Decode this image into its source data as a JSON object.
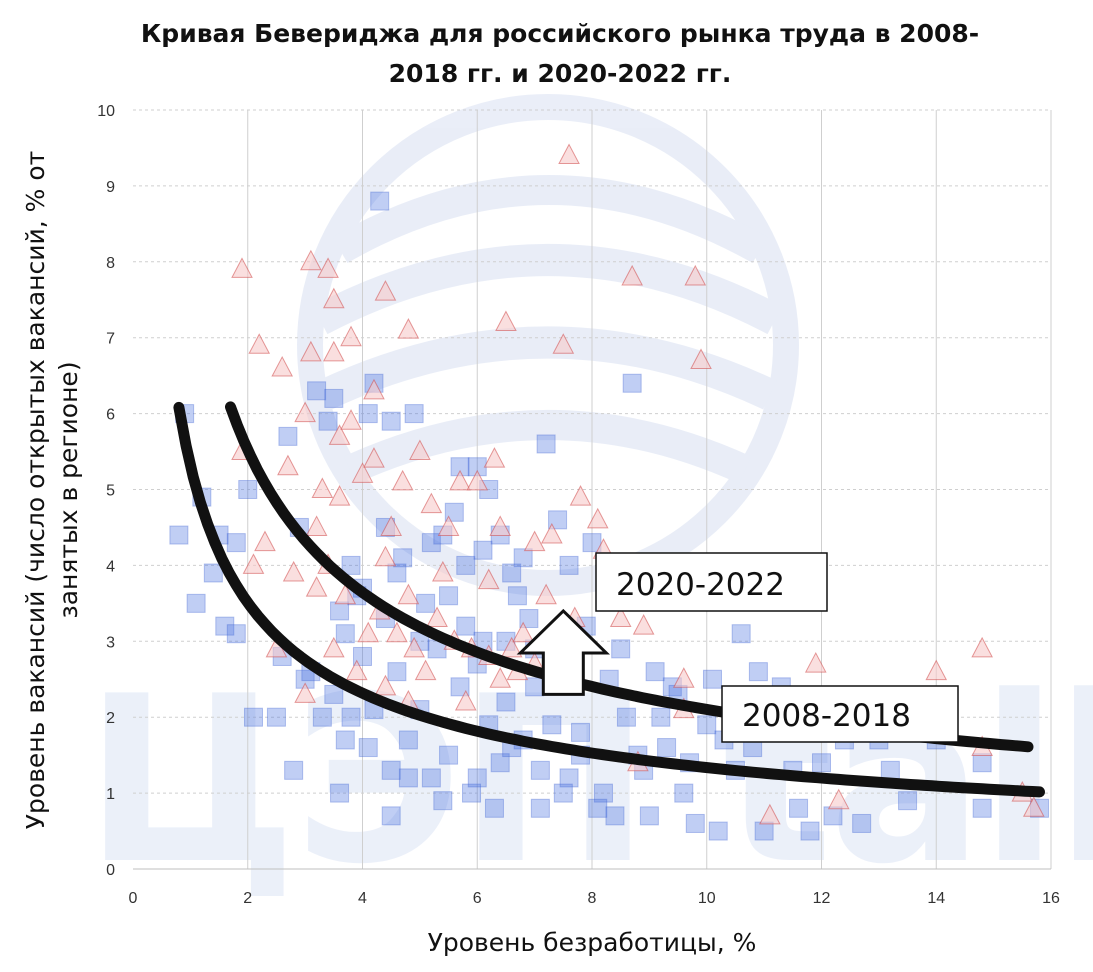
{
  "chart_data": {
    "type": "scatter",
    "title_line1": "Кривая Бевериджа для российского рынка труда в 2008-",
    "title_line2": "2018 гг. и 2020-2022 гг.",
    "xlabel": "Уровень безработицы, %",
    "ylabel_line1": "Уровень  вакансий (число открытых вакансий, % от",
    "ylabel_line2": "занятых в регионе)",
    "xlim": [
      0,
      16
    ],
    "ylim": [
      0,
      10
    ],
    "x_ticks": [
      "0",
      "2",
      "4",
      "6",
      "8",
      "10",
      "12",
      "14",
      "16"
    ],
    "y_ticks": [
      "0",
      "1",
      "2",
      "3",
      "4",
      "5",
      "6",
      "7",
      "8",
      "9",
      "10"
    ],
    "watermark": "ЦЭП talks",
    "colors": {
      "series_2008_2018_fill": "#4a72e0",
      "series_2008_2018_stroke": "#3a5fd0",
      "series_2020_2022_fill": "#f7c9c9",
      "series_2020_2022_stroke": "#d04848",
      "curve": "#111111",
      "grid": "#cfcfcf"
    },
    "curves": [
      {
        "name": "2008-2018",
        "label": "2008-2018",
        "a": 5.6,
        "b": 0.15,
        "x_range": [
          0.8,
          15.8
        ],
        "label_pos": [
          10.5,
          2.0
        ]
      },
      {
        "name": "2020-2022",
        "label": "2020-2022",
        "a": 9.0,
        "b": 0.12,
        "x_range": [
          1.7,
          15.6
        ],
        "label_pos": [
          8.3,
          4.0
        ]
      }
    ],
    "arrow": {
      "from": [
        7.5,
        2.3
      ],
      "to": [
        7.5,
        3.4
      ],
      "direction": "up"
    },
    "series": [
      {
        "name": "2008-2018",
        "marker": "square",
        "points": [
          [
            0.8,
            4.4
          ],
          [
            0.9,
            6.0
          ],
          [
            1.2,
            4.9
          ],
          [
            1.1,
            3.5
          ],
          [
            1.4,
            3.9
          ],
          [
            1.5,
            4.4
          ],
          [
            1.6,
            3.2
          ],
          [
            1.8,
            3.1
          ],
          [
            1.8,
            4.3
          ],
          [
            2.0,
            5.0
          ],
          [
            2.1,
            2.0
          ],
          [
            2.5,
            2.0
          ],
          [
            2.6,
            2.8
          ],
          [
            2.7,
            5.7
          ],
          [
            2.8,
            1.3
          ],
          [
            2.9,
            4.5
          ],
          [
            3.0,
            2.5
          ],
          [
            3.1,
            2.6
          ],
          [
            3.2,
            6.3
          ],
          [
            3.3,
            2.0
          ],
          [
            3.4,
            5.9
          ],
          [
            3.5,
            6.2
          ],
          [
            3.6,
            1.0
          ],
          [
            3.7,
            3.1
          ],
          [
            4.1,
            6.0
          ],
          [
            4.2,
            6.4
          ],
          [
            4.3,
            8.8
          ],
          [
            4.5,
            5.9
          ],
          [
            4.9,
            6.0
          ],
          [
            5.2,
            4.3
          ],
          [
            5.7,
            5.3
          ],
          [
            6.0,
            5.3
          ],
          [
            6.2,
            5.0
          ],
          [
            6.4,
            4.4
          ],
          [
            6.6,
            3.9
          ],
          [
            6.9,
            3.3
          ],
          [
            7.0,
            2.9
          ],
          [
            7.2,
            5.6
          ],
          [
            7.4,
            4.6
          ],
          [
            7.6,
            4.0
          ],
          [
            7.8,
            1.5
          ],
          [
            8.0,
            4.3
          ],
          [
            8.2,
            1.0
          ],
          [
            8.4,
            0.7
          ],
          [
            8.6,
            2.0
          ],
          [
            8.7,
            6.4
          ],
          [
            8.9,
            1.3
          ],
          [
            9.0,
            0.7
          ],
          [
            9.2,
            2.0
          ],
          [
            9.4,
            2.4
          ],
          [
            9.6,
            1.0
          ],
          [
            9.8,
            0.6
          ],
          [
            10.0,
            1.9
          ],
          [
            10.2,
            0.5
          ],
          [
            10.5,
            1.3
          ],
          [
            10.6,
            3.1
          ],
          [
            10.8,
            1.6
          ],
          [
            11.0,
            0.5
          ],
          [
            11.3,
            2.4
          ],
          [
            11.5,
            1.3
          ],
          [
            11.6,
            0.8
          ],
          [
            11.8,
            0.5
          ],
          [
            12.2,
            0.7
          ],
          [
            12.4,
            1.7
          ],
          [
            12.7,
            0.6
          ],
          [
            13.0,
            1.7
          ],
          [
            13.2,
            1.3
          ],
          [
            13.5,
            0.9
          ],
          [
            14.0,
            1.7
          ],
          [
            14.8,
            0.8
          ],
          [
            15.8,
            0.8
          ],
          [
            14.8,
            1.4
          ],
          [
            12.0,
            1.4
          ],
          [
            11.7,
            2.1
          ],
          [
            10.9,
            2.6
          ],
          [
            10.1,
            2.5
          ],
          [
            9.1,
            2.6
          ],
          [
            9.3,
            1.6
          ],
          [
            7.6,
            1.2
          ],
          [
            6.3,
            0.8
          ],
          [
            7.1,
            0.8
          ],
          [
            5.4,
            0.9
          ],
          [
            4.5,
            0.7
          ],
          [
            4.8,
            1.2
          ],
          [
            5.9,
            1.0
          ],
          [
            5.5,
            3.6
          ],
          [
            6.1,
            3.0
          ],
          [
            6.7,
            3.6
          ],
          [
            7.3,
            1.9
          ],
          [
            8.1,
            0.8
          ],
          [
            3.8,
            4.0
          ],
          [
            3.9,
            3.6
          ],
          [
            4.6,
            3.9
          ],
          [
            5.0,
            3.0
          ],
          [
            5.8,
            4.0
          ],
          [
            6.8,
            4.1
          ],
          [
            4.4,
            4.5
          ],
          [
            5.6,
            4.7
          ],
          [
            3.6,
            3.4
          ],
          [
            7.9,
            3.2
          ],
          [
            4.0,
            2.8
          ],
          [
            4.6,
            2.6
          ],
          [
            5.3,
            2.9
          ],
          [
            6.0,
            2.7
          ],
          [
            6.5,
            2.2
          ],
          [
            7.0,
            2.4
          ],
          [
            3.5,
            2.3
          ],
          [
            4.2,
            2.1
          ],
          [
            5.0,
            2.1
          ],
          [
            5.7,
            2.4
          ],
          [
            6.2,
            1.9
          ],
          [
            6.8,
            1.7
          ],
          [
            7.3,
            2.5
          ],
          [
            4.1,
            1.6
          ],
          [
            4.8,
            1.7
          ],
          [
            5.5,
            1.5
          ],
          [
            6.4,
            1.4
          ],
          [
            7.1,
            1.3
          ],
          [
            7.8,
            1.8
          ],
          [
            8.3,
            2.5
          ],
          [
            3.8,
            2.0
          ],
          [
            4.4,
            3.3
          ],
          [
            5.1,
            3.5
          ],
          [
            5.8,
            3.2
          ],
          [
            6.5,
            3.0
          ],
          [
            8.5,
            2.9
          ],
          [
            9.5,
            2.3
          ],
          [
            10.3,
            1.7
          ],
          [
            3.7,
            1.7
          ],
          [
            4.5,
            1.3
          ],
          [
            5.2,
            1.2
          ],
          [
            6.0,
            1.2
          ],
          [
            6.6,
            1.6
          ],
          [
            7.5,
            1.0
          ],
          [
            8.8,
            1.5
          ],
          [
            9.7,
            1.4
          ],
          [
            4.0,
            3.7
          ],
          [
            4.7,
            4.1
          ],
          [
            5.4,
            4.4
          ],
          [
            6.1,
            4.2
          ]
        ]
      },
      {
        "name": "2020-2022",
        "marker": "triangle",
        "points": [
          [
            1.9,
            7.9
          ],
          [
            2.2,
            6.9
          ],
          [
            2.6,
            6.6
          ],
          [
            3.1,
            8.0
          ],
          [
            3.4,
            7.9
          ],
          [
            3.5,
            7.5
          ],
          [
            3.5,
            6.8
          ],
          [
            3.8,
            7.0
          ],
          [
            4.2,
            6.3
          ],
          [
            4.4,
            7.6
          ],
          [
            4.8,
            7.1
          ],
          [
            6.5,
            7.2
          ],
          [
            7.5,
            6.9
          ],
          [
            7.6,
            9.4
          ],
          [
            8.7,
            7.8
          ],
          [
            9.8,
            7.8
          ],
          [
            9.9,
            6.7
          ],
          [
            3.1,
            6.8
          ],
          [
            3.0,
            6.0
          ],
          [
            1.9,
            5.5
          ],
          [
            2.3,
            4.3
          ],
          [
            2.5,
            2.9
          ],
          [
            3.0,
            2.3
          ],
          [
            3.2,
            4.5
          ],
          [
            3.3,
            5.0
          ],
          [
            3.6,
            5.7
          ],
          [
            3.8,
            5.9
          ],
          [
            4.0,
            5.2
          ],
          [
            4.2,
            5.4
          ],
          [
            4.5,
            4.5
          ],
          [
            4.7,
            5.1
          ],
          [
            5.0,
            5.5
          ],
          [
            5.2,
            4.8
          ],
          [
            5.5,
            4.5
          ],
          [
            5.7,
            5.1
          ],
          [
            6.0,
            5.1
          ],
          [
            6.3,
            5.4
          ],
          [
            6.4,
            4.5
          ],
          [
            7.0,
            4.3
          ],
          [
            7.3,
            4.4
          ],
          [
            7.8,
            4.9
          ],
          [
            8.1,
            4.6
          ],
          [
            8.2,
            4.2
          ],
          [
            8.5,
            3.3
          ],
          [
            8.9,
            3.2
          ],
          [
            9.6,
            2.5
          ],
          [
            9.6,
            2.1
          ],
          [
            9.9,
            4.0
          ],
          [
            11.1,
            0.7
          ],
          [
            11.9,
            2.7
          ],
          [
            12.3,
            0.9
          ],
          [
            14.0,
            2.6
          ],
          [
            14.8,
            2.9
          ],
          [
            14.8,
            1.6
          ],
          [
            15.5,
            1.0
          ],
          [
            15.7,
            0.8
          ],
          [
            2.1,
            4.0
          ],
          [
            2.8,
            3.9
          ],
          [
            3.4,
            4.0
          ],
          [
            3.7,
            3.6
          ],
          [
            4.1,
            3.1
          ],
          [
            4.3,
            3.4
          ],
          [
            4.6,
            3.1
          ],
          [
            4.9,
            2.9
          ],
          [
            5.3,
            3.3
          ],
          [
            5.6,
            3.0
          ],
          [
            5.9,
            2.9
          ],
          [
            6.2,
            2.8
          ],
          [
            6.6,
            2.9
          ],
          [
            6.8,
            3.1
          ],
          [
            7.2,
            3.6
          ],
          [
            7.7,
            3.3
          ],
          [
            8.3,
            3.6
          ],
          [
            8.8,
            1.4
          ],
          [
            3.5,
            2.9
          ],
          [
            3.9,
            2.6
          ],
          [
            4.4,
            2.4
          ],
          [
            4.8,
            2.2
          ],
          [
            5.1,
            2.6
          ],
          [
            5.8,
            2.2
          ],
          [
            6.4,
            2.5
          ],
          [
            7.0,
            2.7
          ],
          [
            2.7,
            5.3
          ],
          [
            3.6,
            4.9
          ],
          [
            4.4,
            4.1
          ],
          [
            5.4,
            3.9
          ],
          [
            6.2,
            3.8
          ],
          [
            3.2,
            3.7
          ],
          [
            4.8,
            3.6
          ],
          [
            6.7,
            2.6
          ]
        ]
      }
    ]
  }
}
